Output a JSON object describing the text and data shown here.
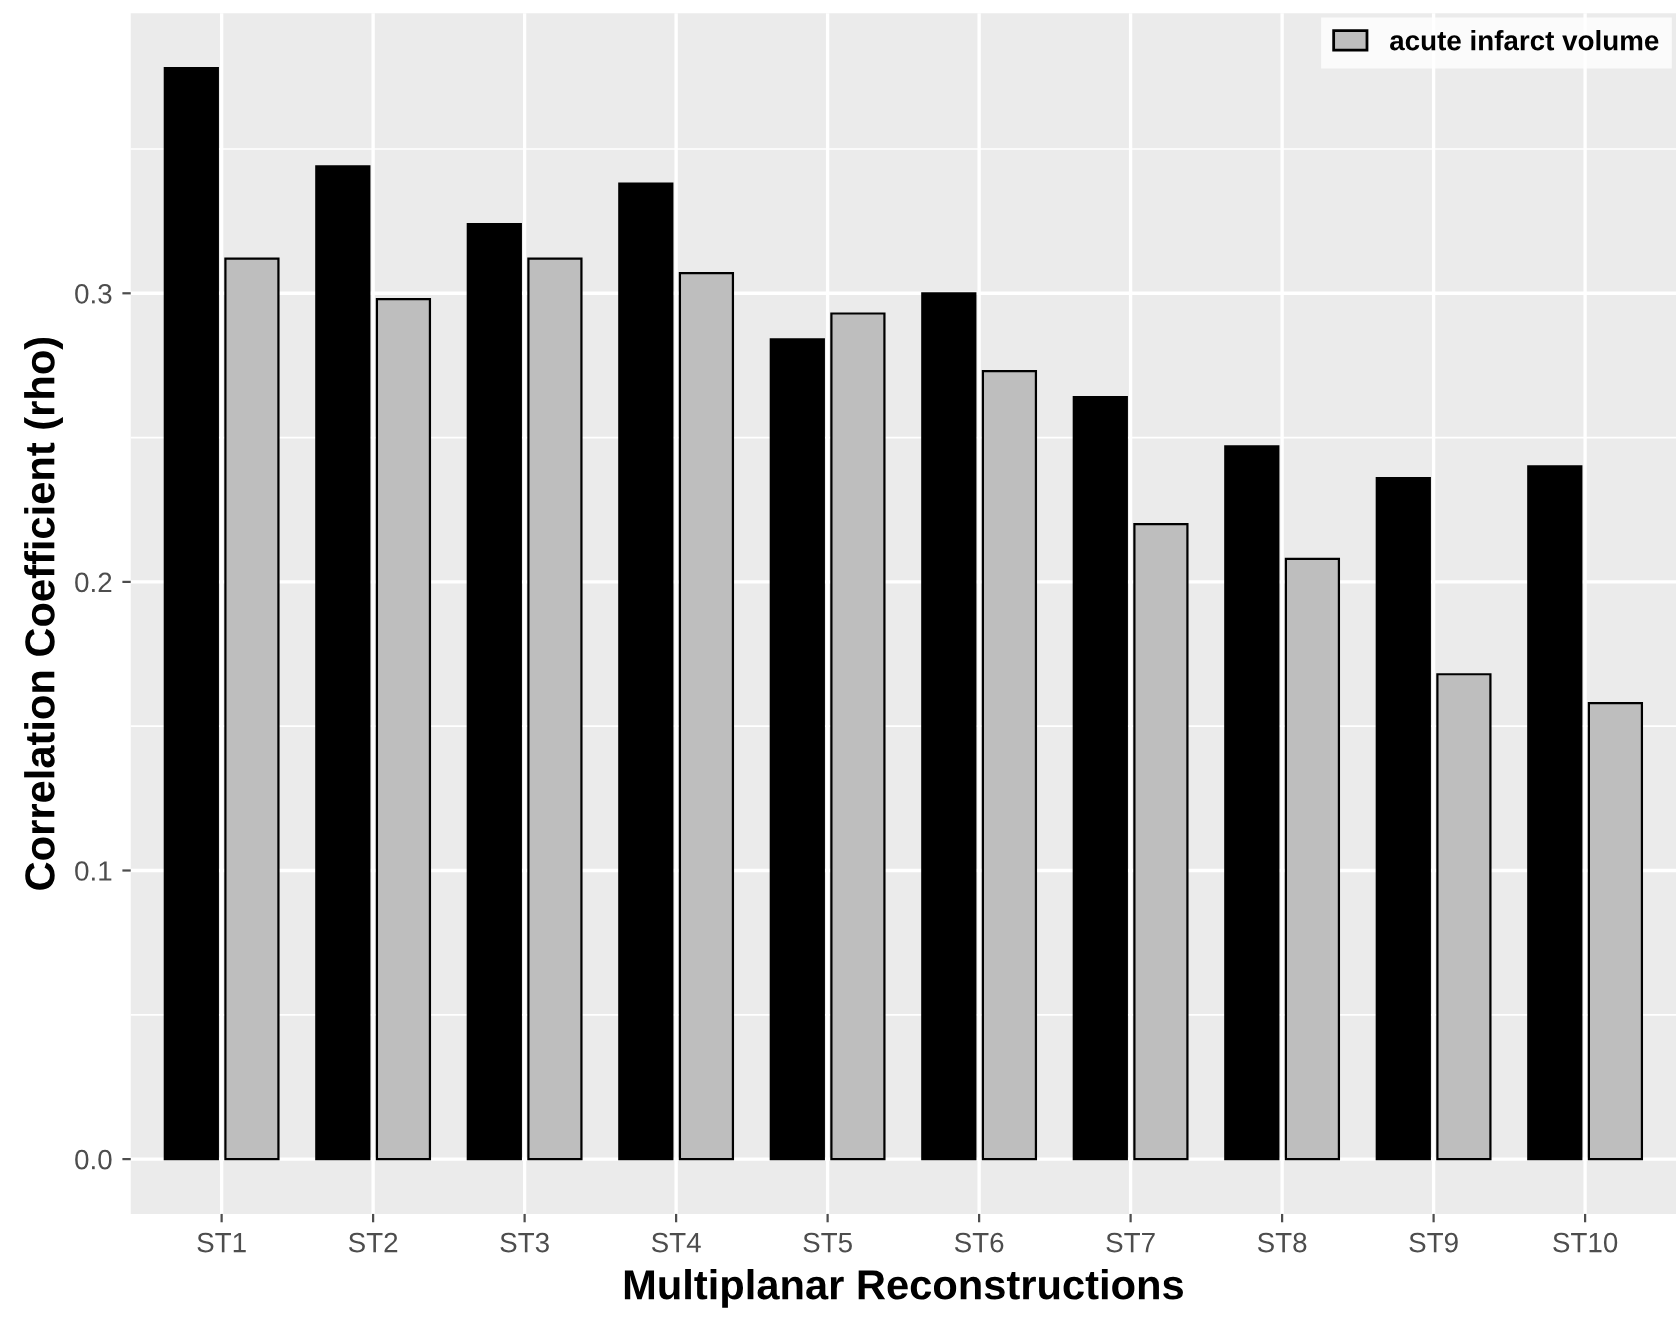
{
  "chart_data": {
    "type": "bar",
    "xlabel": "Multiplanar Reconstructions",
    "ylabel": "Correlation Coefficient (rho)",
    "categories": [
      "ST1",
      "ST2",
      "ST3",
      "ST4",
      "ST5",
      "ST6",
      "ST7",
      "ST8",
      "ST9",
      "ST10"
    ],
    "series": [
      {
        "color": "#000000",
        "values": [
          0.378,
          0.344,
          0.324,
          0.338,
          0.284,
          0.3,
          0.264,
          0.247,
          0.236,
          0.24
        ]
      },
      {
        "name": "acute infarct volume",
        "color": "#bebebe",
        "values": [
          0.312,
          0.298,
          0.312,
          0.307,
          0.293,
          0.273,
          0.22,
          0.208,
          0.168,
          0.158
        ]
      }
    ],
    "ylim": [
      -0.019,
      0.397
    ],
    "yticks": [
      {
        "value": 0,
        "label": "0.0"
      },
      0.1,
      0.2,
      0.3
    ],
    "grid": true,
    "legend": "top right"
  }
}
